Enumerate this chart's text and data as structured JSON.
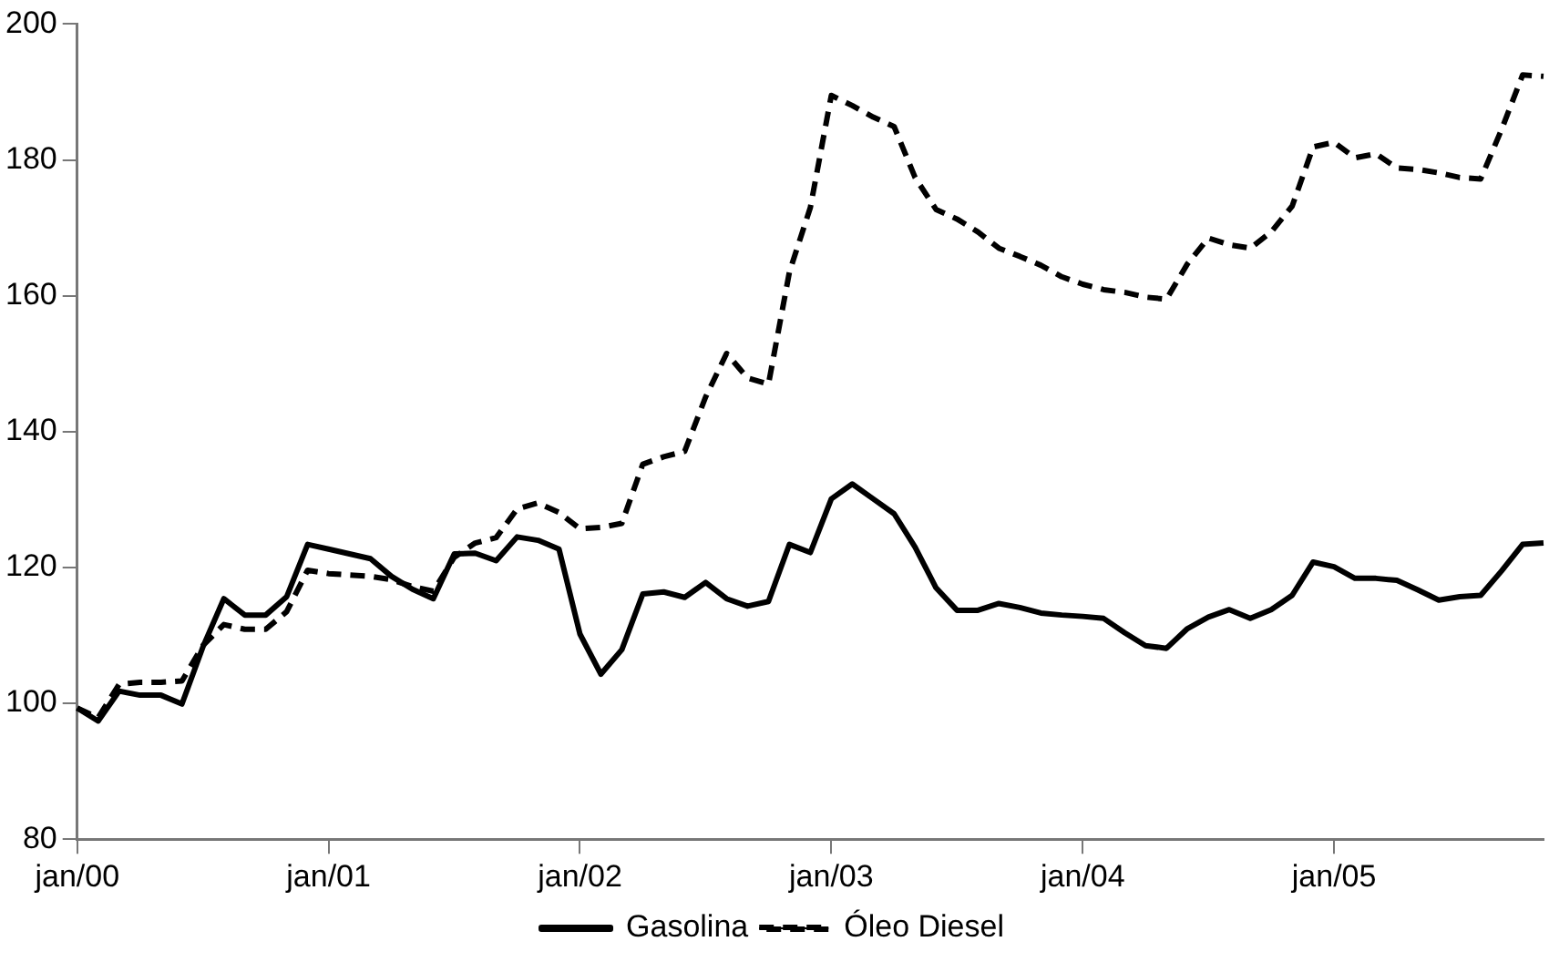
{
  "chart_data": {
    "type": "line",
    "categories": [
      "jan/00",
      null,
      null,
      null,
      null,
      null,
      null,
      null,
      null,
      null,
      null,
      null,
      "jan/01",
      null,
      null,
      null,
      null,
      null,
      null,
      null,
      null,
      null,
      null,
      null,
      "jan/02",
      null,
      null,
      null,
      null,
      null,
      null,
      null,
      null,
      null,
      null,
      null,
      "jan/03",
      null,
      null,
      null,
      null,
      null,
      null,
      null,
      null,
      null,
      null,
      null,
      "jan/04",
      null,
      null,
      null,
      null,
      null,
      null,
      null,
      null,
      null,
      null,
      null,
      "jan/05",
      null,
      null,
      null,
      null,
      null,
      null,
      null,
      null,
      null,
      null
    ],
    "series": [
      {
        "name": "Gasolina",
        "color": "#000000",
        "line_style": "solid",
        "values": [
          99.3,
          97.4,
          101.8,
          101.2,
          101.2,
          99.9,
          108.3,
          115.4,
          113,
          113,
          115.7,
          123.4,
          122.7,
          122,
          121.3,
          118.7,
          116.8,
          115.4,
          122,
          122.1,
          121,
          124.5,
          124,
          122.7,
          110.2,
          104.3,
          107.9,
          116.1,
          116.4,
          115.6,
          117.8,
          115.4,
          114.3,
          115,
          123.4,
          122.2,
          130.1,
          132.3,
          130.1,
          127.9,
          123,
          117,
          113.7,
          113.7,
          114.7,
          114.1,
          113.3,
          113,
          112.8,
          112.5,
          110.4,
          108.5,
          108.1,
          111,
          112.7,
          113.8,
          112.5,
          113.8,
          115.9,
          120.8,
          120.1,
          118.4,
          118.4,
          118.1,
          116.7,
          115.2,
          115.7,
          115.9,
          119.5,
          123.4,
          123.6
        ]
      },
      {
        "name": "Óleo Diesel",
        "color": "#000000",
        "line_style": "dashed",
        "values": [
          99.3,
          97.9,
          102.8,
          103.1,
          103.1,
          103.3,
          108.5,
          111.6,
          110.9,
          110.9,
          113.5,
          119.6,
          119.1,
          118.9,
          118.7,
          118.2,
          117.2,
          116.5,
          121.5,
          123.6,
          124.4,
          128.6,
          129.5,
          128.1,
          125.7,
          125.9,
          126.5,
          135.2,
          136.3,
          137.1,
          145.1,
          151.5,
          147.9,
          147,
          163.5,
          173,
          189.5,
          188,
          186.3,
          184.9,
          177.4,
          172.7,
          171.3,
          169.4,
          167,
          165.8,
          164.5,
          162.8,
          161.7,
          160.9,
          160.5,
          159.8,
          159.5,
          164.7,
          168.5,
          167.5,
          167,
          169.4,
          173.2,
          181.9,
          182.6,
          180.3,
          180.9,
          178.8,
          178.6,
          178.1,
          177.4,
          177.2,
          184.5,
          192.5,
          192.3
        ]
      }
    ],
    "ylim": [
      80,
      200
    ],
    "yticks": [
      80,
      100,
      120,
      140,
      160,
      180,
      200
    ],
    "grid": false,
    "legend": "bottom",
    "marker": "none"
  }
}
